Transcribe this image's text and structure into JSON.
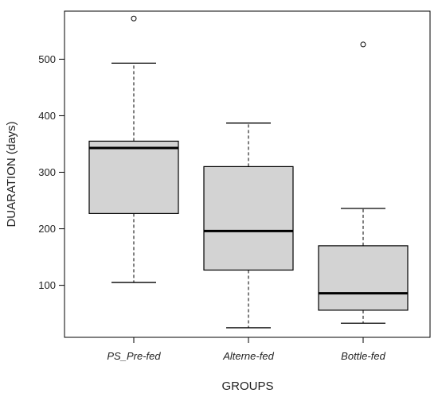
{
  "chart_data": {
    "type": "boxplot",
    "xlabel": "GROUPS",
    "ylabel": "DUARATION (days)",
    "ylim": [
      8,
      585
    ],
    "yticks": [
      100,
      200,
      300,
      400,
      500
    ],
    "categories": [
      "PS_Pre-fed",
      "Alterne-fed",
      "Bottle-fed"
    ],
    "boxes": [
      {
        "category": "PS_Pre-fed",
        "min": 105,
        "q1": 227,
        "median": 343,
        "q3": 355,
        "max": 493,
        "outliers": [
          572
        ]
      },
      {
        "category": "Alterne-fed",
        "min": 25,
        "q1": 127,
        "median": 196,
        "q3": 310,
        "max": 387,
        "outliers": []
      },
      {
        "category": "Bottle-fed",
        "min": 33,
        "q1": 56,
        "median": 86,
        "q3": 170,
        "max": 236,
        "outliers": [
          526
        ]
      }
    ],
    "grid": false,
    "colors": {
      "box_fill": "#d3d3d3",
      "stroke": "#000000"
    }
  }
}
